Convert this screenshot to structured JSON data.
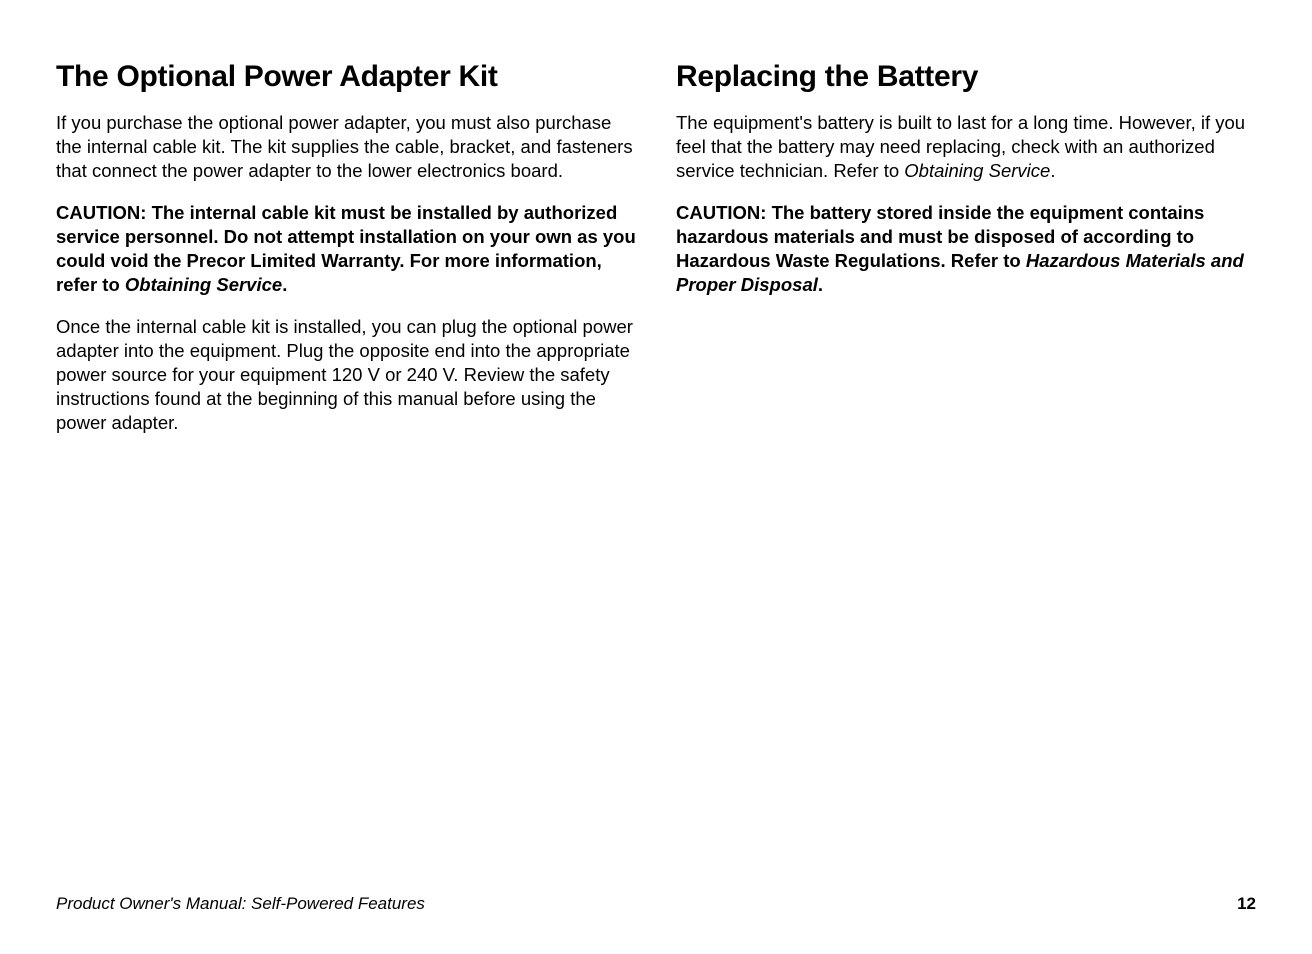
{
  "page": {
    "background_color": "#ffffff",
    "text_color": "#000000",
    "heading_fontsize": 30,
    "body_fontsize": 18.5,
    "footer_fontsize": 17
  },
  "left": {
    "heading": "The Optional Power Adapter Kit",
    "p1": "If you purchase the optional power adapter, you must also purchase the internal cable kit. The kit supplies the cable, bracket, and fasteners that connect the power adapter to the lower electronics board.",
    "caution_prefix": "CAUTION: The internal cable kit must be installed by authorized service personnel. Do not attempt installation on your own as you could void the Precor Limited Warranty. For more information, refer to ",
    "caution_ital": "Obtaining Service",
    "caution_suffix": ".",
    "p2": "Once the internal cable kit is installed, you can plug the optional power adapter into the equipment. Plug the opposite end into the appropriate power source for your equipment 120 V or 240 V. Review the safety instructions found at the beginning of this manual before using the power adapter."
  },
  "right": {
    "heading": "Replacing the Battery",
    "p1_a": "The equipment's battery is built to last for a long time. However, if you feel that the battery may need replacing, check with an authorized service technician. Refer to ",
    "p1_ital": "Obtaining Service",
    "p1_b": ".",
    "caution_prefix": "CAUTION: The battery stored inside the equipment contains hazardous materials and must be disposed of according to Hazardous Waste Regulations. Refer to ",
    "caution_ital": "Hazardous Materials and Proper Disposal",
    "caution_suffix": "."
  },
  "footer": {
    "left": "Product Owner's Manual: Self-Powered Features",
    "page_number": "12"
  }
}
